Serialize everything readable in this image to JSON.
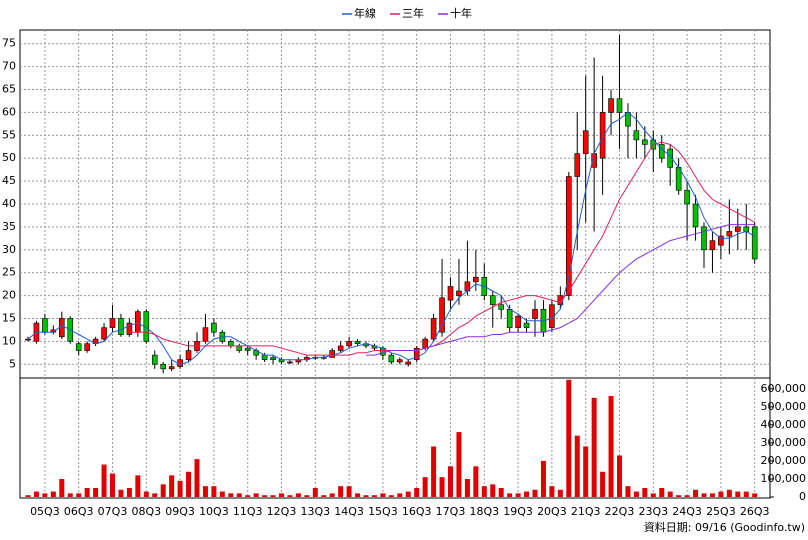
{
  "chart_data": {
    "type": "candlestick",
    "categories": [
      null,
      null,
      "05Q3",
      null,
      null,
      null,
      "06Q3",
      null,
      null,
      null,
      "07Q3",
      null,
      null,
      null,
      "08Q3",
      null,
      null,
      null,
      "09Q3",
      null,
      null,
      null,
      "10Q3",
      null,
      null,
      null,
      "11Q3",
      null,
      null,
      null,
      "12Q3",
      null,
      null,
      null,
      "13Q3",
      null,
      null,
      null,
      "14Q3",
      null,
      null,
      null,
      "15Q3",
      null,
      null,
      null,
      "16Q3",
      null,
      null,
      null,
      "17Q3",
      null,
      null,
      null,
      "18Q3",
      null,
      null,
      null,
      "19Q3",
      null,
      null,
      null,
      "20Q3",
      null,
      null,
      null,
      "21Q3",
      null,
      null,
      null,
      "22Q3",
      null,
      null,
      null,
      "23Q3",
      null,
      null,
      null,
      "24Q3",
      null,
      null,
      null,
      "25Q3",
      null,
      null,
      null,
      "26Q3"
    ],
    "candles": [
      [
        10.5,
        11,
        10,
        10.5
      ],
      [
        10,
        14.5,
        9.5,
        14
      ],
      [
        15,
        16,
        11.5,
        12
      ],
      [
        12,
        13.5,
        11.5,
        12.5
      ],
      [
        11,
        16.5,
        10.5,
        15
      ],
      [
        15,
        15.5,
        9.5,
        10
      ],
      [
        9.5,
        10,
        7,
        8
      ],
      [
        8,
        10,
        7.5,
        9.5
      ],
      [
        9.5,
        11,
        9,
        10.5
      ],
      [
        10.5,
        14,
        10,
        13
      ],
      [
        13,
        18,
        12,
        15
      ],
      [
        15,
        16,
        11,
        11.5
      ],
      [
        11.5,
        15,
        11,
        14
      ],
      [
        12,
        17,
        11,
        16.5
      ],
      [
        16.5,
        17,
        9.5,
        10
      ],
      [
        7,
        8,
        4,
        5
      ],
      [
        5,
        5.5,
        3,
        4
      ],
      [
        4,
        6,
        3.5,
        4.5
      ],
      [
        4.5,
        7,
        4,
        6
      ],
      [
        6,
        10,
        5.5,
        8
      ],
      [
        8,
        12,
        7.5,
        10
      ],
      [
        10,
        16,
        9.5,
        13
      ],
      [
        14,
        15,
        11,
        12
      ],
      [
        12,
        12.5,
        9.5,
        10
      ],
      [
        10,
        10.5,
        8.5,
        9
      ],
      [
        9,
        9.5,
        7.5,
        8
      ],
      [
        8.5,
        9,
        7,
        8
      ],
      [
        8,
        8.5,
        6,
        7
      ],
      [
        7,
        7.5,
        5.5,
        6
      ],
      [
        6.5,
        7,
        5,
        6
      ],
      [
        6,
        6.5,
        5,
        5.5
      ],
      [
        5.5,
        6,
        5,
        5.5
      ],
      [
        5.5,
        6.5,
        5,
        6
      ],
      [
        6,
        7,
        5.5,
        6.5
      ],
      [
        6.5,
        7,
        6,
        6.5
      ],
      [
        6.5,
        7,
        6,
        6.5
      ],
      [
        6.5,
        8.5,
        6.5,
        8
      ],
      [
        8,
        10,
        7.5,
        9
      ],
      [
        9,
        11,
        8.5,
        10
      ],
      [
        10,
        10.5,
        9,
        9.5
      ],
      [
        9.5,
        10,
        8.5,
        9
      ],
      [
        9,
        9.5,
        8,
        8.5
      ],
      [
        8.5,
        9,
        6,
        7
      ],
      [
        7,
        7.5,
        5,
        5.5
      ],
      [
        5.5,
        6.5,
        5,
        6
      ],
      [
        5,
        6,
        4.5,
        5.5
      ],
      [
        6,
        9,
        5.5,
        8.5
      ],
      [
        8.5,
        11,
        8,
        10.5
      ],
      [
        10.5,
        16,
        10,
        15
      ],
      [
        12,
        28,
        11,
        19.5
      ],
      [
        19,
        24,
        17,
        22
      ],
      [
        20,
        28,
        18,
        21
      ],
      [
        21,
        32,
        20,
        23
      ],
      [
        23,
        30,
        21,
        24
      ],
      [
        24,
        27,
        19,
        20
      ],
      [
        20,
        21,
        13,
        18
      ],
      [
        18,
        20,
        15,
        17
      ],
      [
        17,
        18,
        12,
        13
      ],
      [
        13,
        16,
        12,
        15.5
      ],
      [
        14,
        15,
        12,
        13
      ],
      [
        15,
        19,
        11,
        17
      ],
      [
        17,
        19,
        11,
        12
      ],
      [
        13,
        19,
        12,
        18
      ],
      [
        18,
        22,
        17,
        20
      ],
      [
        20,
        47,
        19,
        46
      ],
      [
        46,
        60,
        30,
        51
      ],
      [
        51,
        68,
        36,
        56
      ],
      [
        48,
        72,
        34,
        51
      ],
      [
        50,
        68,
        42,
        60
      ],
      [
        60,
        65,
        55,
        63
      ],
      [
        63,
        77,
        52,
        60
      ],
      [
        60,
        62,
        50,
        57
      ],
      [
        56,
        60,
        50,
        54
      ],
      [
        54,
        57,
        50,
        53
      ],
      [
        54,
        56,
        47,
        52
      ],
      [
        53,
        55,
        49,
        50
      ],
      [
        52,
        53,
        44,
        48
      ],
      [
        48,
        50,
        42,
        43
      ],
      [
        43,
        45,
        32,
        40
      ],
      [
        40,
        42,
        32,
        35
      ],
      [
        35,
        36,
        26,
        30
      ],
      [
        30,
        34,
        25,
        32
      ],
      [
        31,
        35,
        28,
        33
      ],
      [
        33,
        41,
        29,
        34
      ],
      [
        34,
        39,
        30,
        35
      ],
      [
        35,
        40,
        30,
        34
      ],
      [
        35,
        36,
        27,
        28
      ]
    ],
    "volume": [
      10000,
      30000,
      20000,
      30000,
      100000,
      20000,
      20000,
      50000,
      50000,
      180000,
      130000,
      40000,
      50000,
      120000,
      30000,
      20000,
      70000,
      120000,
      90000,
      140000,
      210000,
      60000,
      60000,
      30000,
      20000,
      20000,
      10000,
      20000,
      10000,
      10000,
      20000,
      10000,
      20000,
      10000,
      50000,
      10000,
      20000,
      60000,
      60000,
      20000,
      10000,
      10000,
      20000,
      10000,
      20000,
      30000,
      50000,
      110000,
      280000,
      110000,
      170000,
      360000,
      100000,
      170000,
      60000,
      70000,
      50000,
      20000,
      20000,
      30000,
      40000,
      200000,
      60000,
      40000,
      650000,
      340000,
      280000,
      550000,
      140000,
      560000,
      230000,
      60000,
      30000,
      50000,
      20000,
      50000,
      30000,
      10000,
      10000,
      40000,
      20000,
      20000,
      30000,
      40000,
      30000,
      30000,
      20000
    ],
    "series": [
      {
        "name": "年線",
        "color": "#1f5fd0",
        "values": [
          10.5,
          12,
          12,
          12,
          13.5,
          12.5,
          11.5,
          10.5,
          9.5,
          10,
          12,
          12.5,
          13.5,
          14,
          13,
          11.5,
          9,
          6,
          5,
          5.5,
          7,
          9,
          10.5,
          11,
          11,
          10,
          9,
          8,
          7,
          7,
          6,
          6,
          6,
          6,
          6.5,
          6.5,
          7,
          7.5,
          8.5,
          9,
          9.5,
          9,
          8.5,
          7.5,
          7,
          6,
          6.5,
          7.5,
          10,
          13.5,
          17,
          19.5,
          21,
          22.5,
          22,
          21,
          20,
          17,
          16,
          14.5,
          14.5,
          14.5,
          15,
          17,
          24,
          34,
          43,
          51,
          54.5,
          57.5,
          58.5,
          60,
          58.5,
          56,
          54,
          52,
          50.5,
          48,
          45,
          41.5,
          37,
          34,
          32.5,
          32.5,
          33.5,
          34,
          33
        ]
      },
      {
        "name": "三年",
        "color": "#e0205a",
        "values": [
          null,
          null,
          null,
          null,
          null,
          null,
          null,
          null,
          null,
          null,
          null,
          null,
          12,
          12,
          12,
          11.5,
          10.5,
          10,
          9.5,
          9,
          9,
          9,
          9,
          9,
          9,
          9,
          9,
          9,
          9,
          9,
          8.5,
          8,
          7.5,
          7,
          7,
          7,
          7,
          7,
          7,
          7.5,
          7.5,
          8,
          8,
          8,
          8,
          8,
          8,
          8.5,
          9,
          10,
          11.5,
          13,
          14,
          15.5,
          16.5,
          17.5,
          18.5,
          19,
          19.5,
          20,
          20,
          19.5,
          19,
          18.5,
          21,
          24,
          27,
          30,
          33,
          37,
          41,
          44,
          47,
          50,
          53,
          53.5,
          53,
          51.5,
          49,
          46,
          43,
          41,
          40,
          39,
          38,
          37,
          36
        ]
      },
      {
        "name": "十年",
        "color": "#8a2be2",
        "values": [
          null,
          null,
          null,
          null,
          null,
          null,
          null,
          null,
          null,
          null,
          null,
          null,
          null,
          null,
          null,
          null,
          null,
          null,
          null,
          null,
          null,
          null,
          null,
          null,
          null,
          null,
          null,
          null,
          null,
          null,
          null,
          null,
          null,
          null,
          null,
          null,
          null,
          null,
          null,
          null,
          7,
          7,
          7.5,
          8,
          8,
          8,
          8,
          8.5,
          9,
          9.5,
          10,
          10.5,
          11,
          11,
          11,
          11.5,
          11.5,
          12,
          12,
          12,
          12,
          12,
          12.5,
          13,
          14,
          15,
          17,
          19,
          21,
          23,
          25,
          26.5,
          28,
          29,
          30,
          31,
          32,
          32.5,
          33,
          33.5,
          34,
          34.5,
          35,
          35.5,
          35.5,
          35.5,
          35.5
        ]
      }
    ],
    "up_color": "#ff0000",
    "down_color": "#00c000",
    "volume_color": "#e00000",
    "ylim": [
      2,
      78
    ],
    "yticks": [
      5,
      10,
      15,
      20,
      25,
      30,
      35,
      40,
      45,
      50,
      55,
      60,
      65,
      70,
      75
    ],
    "y2lim": [
      0,
      660000
    ],
    "y2ticks": [
      {
        "value": 0,
        "label": "0"
      },
      {
        "value": 100000,
        "label": "100,000"
      },
      {
        "value": 200000,
        "label": "200,000"
      },
      {
        "value": 300000,
        "label": "300,000"
      },
      {
        "value": 400000,
        "label": "400,000"
      },
      {
        "value": 500000,
        "label": "500,000"
      },
      {
        "value": 600000,
        "label": "600,000"
      }
    ],
    "grid": true,
    "footer": "資料日期: 09/16  (Goodinfo.tw)"
  }
}
